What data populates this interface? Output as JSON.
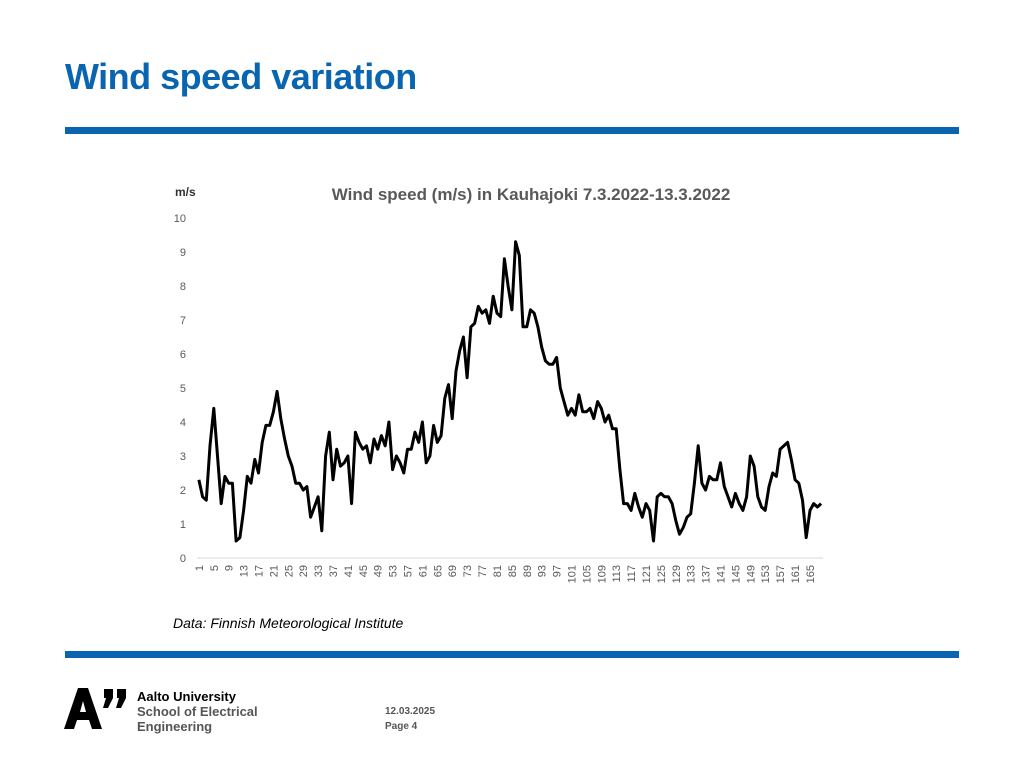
{
  "slide": {
    "title": "Wind speed variation",
    "source_note": "Data: Finnish Meteorological Institute"
  },
  "footer": {
    "org_line1": "Aalto University",
    "org_line2": "School of Electrical",
    "org_line3": "Engineering",
    "date": "12.03.2025",
    "page": "Page 4"
  },
  "colors": {
    "accent": "#0a65b1",
    "line": "#000000",
    "axis_text": "#595959"
  },
  "chart_data": {
    "type": "line",
    "title": "Wind speed (m/s) in Kauhajoki 7.3.2022-13.3.2022",
    "ylabel": "m/s",
    "xlabel": "",
    "ylim": [
      0,
      10
    ],
    "yticks": [
      0,
      1,
      2,
      3,
      4,
      5,
      6,
      7,
      8,
      9,
      10
    ],
    "xtick_labels": [
      "1",
      "5",
      "9",
      "13",
      "17",
      "21",
      "25",
      "29",
      "33",
      "37",
      "41",
      "45",
      "49",
      "53",
      "57",
      "61",
      "65",
      "69",
      "73",
      "77",
      "81",
      "85",
      "89",
      "93",
      "97",
      "101",
      "105",
      "109",
      "113",
      "117",
      "121",
      "125",
      "129",
      "133",
      "137",
      "141",
      "145",
      "149",
      "153",
      "157",
      "161",
      "165"
    ],
    "grid": false,
    "legend": "none",
    "x": [
      1,
      2,
      3,
      4,
      5,
      6,
      7,
      8,
      9,
      10,
      11,
      12,
      13,
      14,
      15,
      16,
      17,
      18,
      19,
      20,
      21,
      22,
      23,
      24,
      25,
      26,
      27,
      28,
      29,
      30,
      31,
      32,
      33,
      34,
      35,
      36,
      37,
      38,
      39,
      40,
      41,
      42,
      43,
      44,
      45,
      46,
      47,
      48,
      49,
      50,
      51,
      52,
      53,
      54,
      55,
      56,
      57,
      58,
      59,
      60,
      61,
      62,
      63,
      64,
      65,
      66,
      67,
      68,
      69,
      70,
      71,
      72,
      73,
      74,
      75,
      76,
      77,
      78,
      79,
      80,
      81,
      82,
      83,
      84,
      85,
      86,
      87,
      88,
      89,
      90,
      91,
      92,
      93,
      94,
      95,
      96,
      97,
      98,
      99,
      100,
      101,
      102,
      103,
      104,
      105,
      106,
      107,
      108,
      109,
      110,
      111,
      112,
      113,
      114,
      115,
      116,
      117,
      118,
      119,
      120,
      121,
      122,
      123,
      124,
      125,
      126,
      127,
      128,
      129,
      130,
      131,
      132,
      133,
      134,
      135,
      136,
      137,
      138,
      139,
      140,
      141,
      142,
      143,
      144,
      145,
      146,
      147,
      148,
      149,
      150,
      151,
      152,
      153,
      154,
      155,
      156,
      157,
      158,
      159,
      160,
      161,
      162,
      163,
      164,
      165,
      166,
      167,
      168
    ],
    "values": [
      2.3,
      1.8,
      1.7,
      3.3,
      4.4,
      3.0,
      1.6,
      2.4,
      2.2,
      2.2,
      0.5,
      0.6,
      1.4,
      2.4,
      2.2,
      2.9,
      2.5,
      3.4,
      3.9,
      3.9,
      4.3,
      4.9,
      4.1,
      3.5,
      3.0,
      2.7,
      2.2,
      2.2,
      2.0,
      2.1,
      1.2,
      1.5,
      1.8,
      0.8,
      3.0,
      3.7,
      2.3,
      3.2,
      2.7,
      2.8,
      3.0,
      1.6,
      3.7,
      3.4,
      3.2,
      3.3,
      2.8,
      3.5,
      3.2,
      3.6,
      3.3,
      4.0,
      2.6,
      3.0,
      2.8,
      2.5,
      3.2,
      3.2,
      3.7,
      3.4,
      4.0,
      2.8,
      3.0,
      3.9,
      3.4,
      3.6,
      4.7,
      5.1,
      4.1,
      5.5,
      6.1,
      6.5,
      5.3,
      6.8,
      6.9,
      7.4,
      7.2,
      7.3,
      6.9,
      7.7,
      7.2,
      7.1,
      8.8,
      8.0,
      7.3,
      9.3,
      8.9,
      6.8,
      6.8,
      7.3,
      7.2,
      6.8,
      6.2,
      5.8,
      5.7,
      5.7,
      5.9,
      5.0,
      4.6,
      4.2,
      4.4,
      4.2,
      4.8,
      4.3,
      4.3,
      4.4,
      4.1,
      4.6,
      4.4,
      4.0,
      4.2,
      3.8,
      3.8,
      2.6,
      1.6,
      1.6,
      1.4,
      1.9,
      1.5,
      1.2,
      1.6,
      1.4,
      0.5,
      1.8,
      1.9,
      1.8,
      1.8,
      1.6,
      1.1,
      0.7,
      0.9,
      1.2,
      1.3,
      2.2,
      3.3,
      2.2,
      2.0,
      2.4,
      2.3,
      2.3,
      2.8,
      2.1,
      1.8,
      1.5,
      1.9,
      1.6,
      1.4,
      1.8,
      3.0,
      2.7,
      1.8,
      1.5,
      1.4,
      2.1,
      2.5,
      2.4,
      3.2,
      3.3,
      3.4,
      2.9,
      2.3,
      2.2,
      1.7,
      0.6,
      1.4,
      1.6,
      1.5,
      1.6
    ]
  }
}
